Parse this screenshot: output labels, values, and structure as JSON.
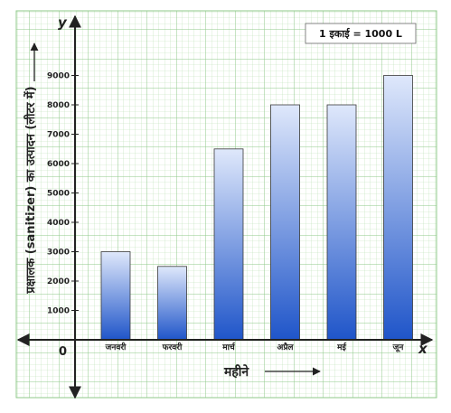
{
  "chart_data": {
    "type": "bar",
    "categories": [
      "जनवरी",
      "फरवरी",
      "मार्च",
      "अप्रैल",
      "मई",
      "जून"
    ],
    "values": [
      3000,
      2500,
      6500,
      8000,
      8000,
      9000
    ],
    "yticks": [
      1000,
      2000,
      3000,
      4000,
      5000,
      6000,
      7000,
      8000,
      9000
    ],
    "ylim": [
      0,
      9000
    ],
    "ylabel": "प्रक्षालक (sanitizer) का उत्पादन (लीटर में)",
    "xlabel": "महीने",
    "x_axis_letter": "x",
    "y_axis_letter": "y",
    "origin_label": "0",
    "unit_note": "1 इकाई = 1000 L",
    "grid": true,
    "colors": {
      "grid_minor": "#b9dfb4",
      "grid_major": "#8fc98a",
      "bar_top": "#dfe8fb",
      "bar_bottom": "#1f55c9",
      "bar_border": "#3a3a3a"
    }
  }
}
